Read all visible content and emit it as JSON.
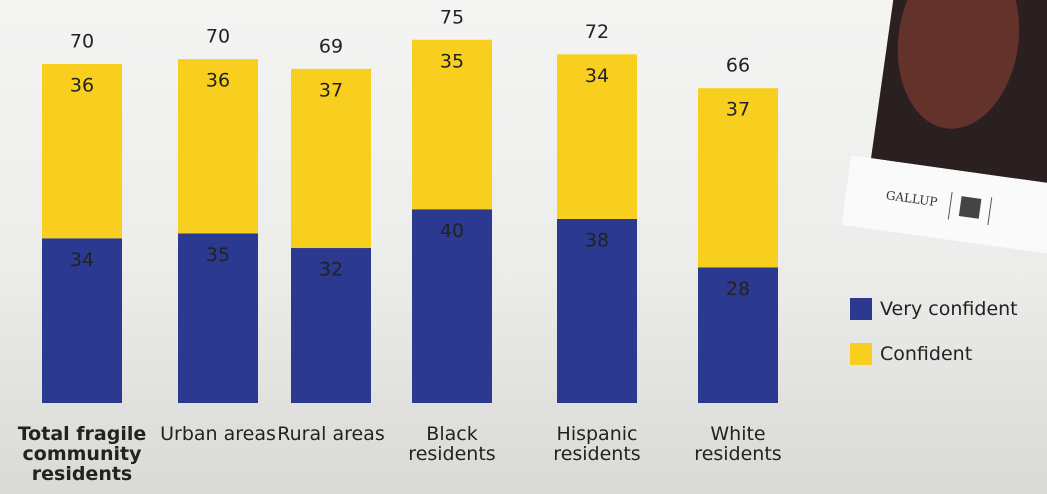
{
  "chart_data": {
    "type": "stacked_bar",
    "categories": [
      "Total fragile community residents",
      "Urban areas",
      "Rural areas",
      "Black residents",
      "Hispanic residents",
      "White residents"
    ],
    "series": [
      {
        "name": "Very confident",
        "color": "#2b3990",
        "values": [
          34,
          35,
          32,
          40,
          38,
          28
        ]
      },
      {
        "name": "Confident",
        "color": "#f9cf1f",
        "values": [
          36,
          36,
          37,
          35,
          34,
          37
        ]
      }
    ],
    "totals": [
      70,
      70,
      69,
      75,
      72,
      66
    ],
    "legend": "right",
    "cover_text": "GALLUP"
  }
}
